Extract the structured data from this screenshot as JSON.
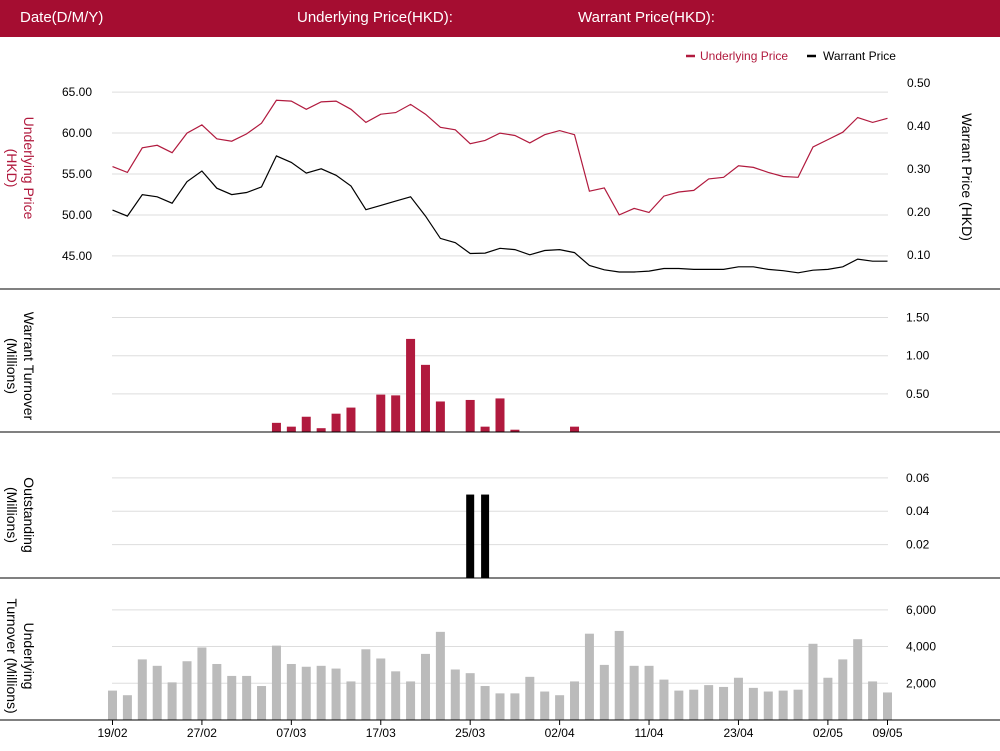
{
  "header": {
    "date_label": "Date(D/M/Y)",
    "underlying_price_label": "Underlying Price(HKD):",
    "warrant_price_label": "Warrant Price(HKD):"
  },
  "colors": {
    "brand": "#a50d31",
    "underlying": "#b11a3e",
    "warrant": "#000000",
    "underlying_turnover_bar": "#bbbbbb",
    "grid": "#dddddd"
  },
  "chart_data": [
    {
      "type": "line",
      "panel": "price",
      "x_tick_labels": [
        "19/02",
        "27/02",
        "07/03",
        "17/03",
        "25/03",
        "02/04",
        "11/04",
        "23/04",
        "02/05",
        "09/05"
      ],
      "legend": [
        "Underlying Price",
        "Warrant Price"
      ],
      "legend_position": "top-right",
      "ylabel_left": "Underlying Price (HKD)",
      "ylabel_right": "Warrant Price (HKD)",
      "left_axis": {
        "ticks": [
          "45.00",
          "50.00",
          "55.00",
          "60.00",
          "65.00"
        ],
        "ylim": [
          41.2,
          67.7
        ]
      },
      "right_axis": {
        "ticks": [
          "0.10",
          "0.20",
          "0.30",
          "0.40",
          "0.50"
        ],
        "ylim": [
          0.025,
          0.53
        ]
      },
      "grid": true,
      "series": [
        {
          "name": "Underlying Price",
          "axis": "left",
          "values": [
            55.9,
            55.2,
            58.2,
            58.5,
            57.6,
            60.0,
            61.0,
            59.3,
            59.0,
            59.9,
            61.2,
            64.0,
            63.9,
            62.9,
            63.8,
            63.9,
            62.9,
            61.3,
            62.3,
            62.5,
            63.5,
            62.3,
            60.7,
            60.4,
            58.7,
            59.1,
            60.0,
            59.7,
            58.8,
            59.8,
            60.3,
            59.8,
            52.9,
            53.3,
            50.0,
            50.8,
            50.3,
            52.3,
            52.8,
            53.0,
            54.4,
            54.6,
            56.0,
            55.8,
            55.2,
            54.7,
            54.6,
            58.3,
            59.2,
            60.1,
            61.9,
            61.3,
            61.8
          ]
        },
        {
          "name": "Warrant Price",
          "axis": "right",
          "values": [
            0.204,
            0.19,
            0.24,
            0.235,
            0.22,
            0.27,
            0.295,
            0.255,
            0.24,
            0.245,
            0.258,
            0.33,
            0.315,
            0.29,
            0.3,
            0.285,
            0.26,
            0.205,
            0.215,
            0.225,
            0.235,
            0.19,
            0.138,
            0.128,
            0.103,
            0.104,
            0.115,
            0.112,
            0.1,
            0.11,
            0.112,
            0.105,
            0.075,
            0.065,
            0.06,
            0.06,
            0.062,
            0.068,
            0.068,
            0.066,
            0.066,
            0.066,
            0.072,
            0.072,
            0.066,
            0.063,
            0.058,
            0.064,
            0.066,
            0.072,
            0.09,
            0.085,
            0.085
          ]
        }
      ]
    },
    {
      "type": "bar",
      "panel": "warrant_turnover",
      "ylabel": "Warrant  Turnover (Millions)",
      "right_axis": {
        "ticks": [
          "0.50",
          "1.00",
          "1.50"
        ],
        "ylim": [
          0,
          1.73
        ]
      },
      "grid": true,
      "series": [
        {
          "name": "Warrant Turnover",
          "values": [
            0,
            0,
            0,
            0,
            0,
            0,
            0,
            0,
            0,
            0,
            0,
            0.12,
            0.07,
            0.2,
            0.05,
            0.24,
            0.32,
            0,
            0.49,
            0.48,
            1.22,
            0.88,
            0.4,
            0,
            0.42,
            0.07,
            0.44,
            0.03,
            0,
            0,
            0,
            0.07,
            0,
            0,
            0,
            0,
            0,
            0,
            0,
            0,
            0,
            0,
            0,
            0,
            0,
            0,
            0,
            0,
            0,
            0,
            0,
            0,
            0
          ]
        }
      ]
    },
    {
      "type": "bar",
      "panel": "outstanding",
      "ylabel": "Outstanding (Millions)",
      "right_axis": {
        "ticks": [
          "0.02",
          "0.04",
          "0.06"
        ],
        "ylim": [
          0,
          0.0755
        ]
      },
      "grid": true,
      "series": [
        {
          "name": "Outstanding",
          "values": [
            0,
            0,
            0,
            0,
            0,
            0,
            0,
            0,
            0,
            0,
            0,
            0,
            0,
            0,
            0,
            0,
            0,
            0,
            0,
            0,
            0,
            0,
            0,
            0,
            0.05,
            0.05,
            0,
            0,
            0,
            0,
            0,
            0,
            0,
            0,
            0,
            0,
            0,
            0,
            0,
            0,
            0,
            0,
            0,
            0,
            0,
            0,
            0,
            0,
            0,
            0,
            0,
            0,
            0
          ]
        }
      ]
    },
    {
      "type": "bar",
      "panel": "underlying_turnover",
      "ylabel": "Underlying Turnover (Millions)",
      "right_axis": {
        "ticks": [
          "2,000",
          "4,000",
          "6,000"
        ],
        "ylim": [
          0,
          6970
        ]
      },
      "grid": true,
      "series": [
        {
          "name": "Underlying Turnover",
          "values": [
            1600,
            1350,
            3300,
            2950,
            2050,
            3200,
            3950,
            3050,
            2400,
            2400,
            1850,
            4050,
            3050,
            2900,
            2950,
            2800,
            2100,
            3850,
            3350,
            2650,
            2100,
            3600,
            4800,
            2750,
            2550,
            1850,
            1450,
            1450,
            2350,
            1550,
            1350,
            2100,
            4700,
            3000,
            4850,
            2950,
            2950,
            2200,
            1600,
            1650,
            1900,
            1800,
            2300,
            1750,
            1550,
            1600,
            1650,
            4150,
            2300,
            3300,
            4400,
            2100,
            1500
          ]
        }
      ]
    }
  ]
}
